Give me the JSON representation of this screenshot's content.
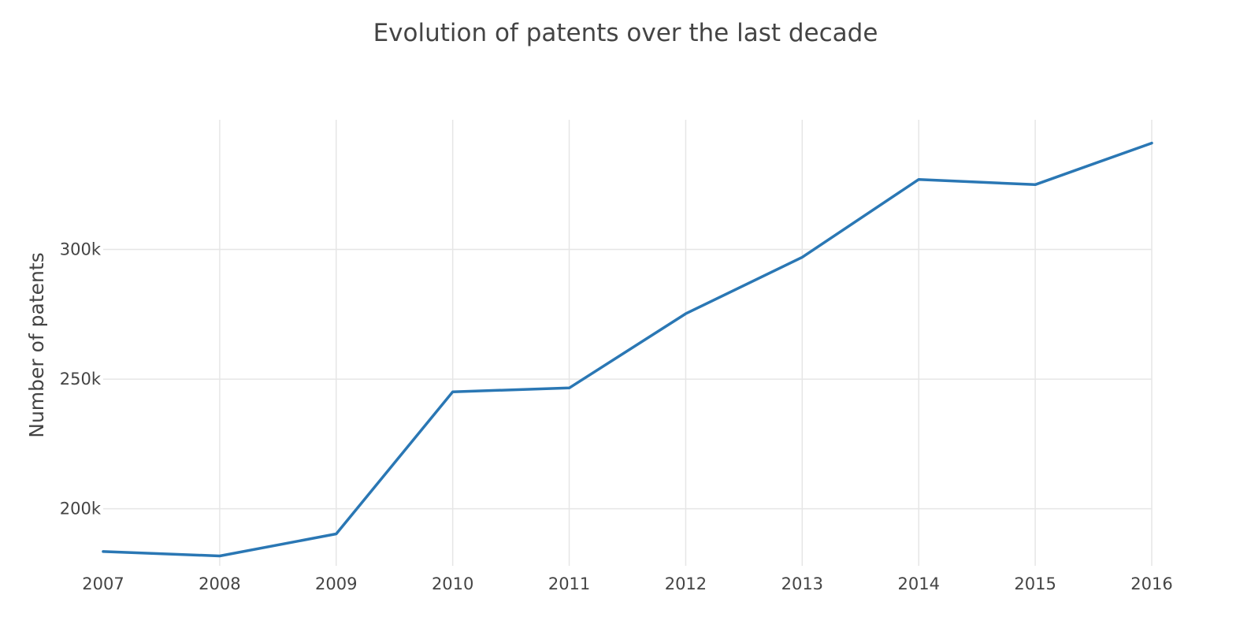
{
  "chart_data": {
    "type": "line",
    "title": "Evolution of patents over the last decade",
    "xlabel": "",
    "ylabel": "Number of patents",
    "x": [
      2007,
      2008,
      2009,
      2010,
      2011,
      2012,
      2013,
      2014,
      2015,
      2016
    ],
    "x_tick_labels": [
      "2007",
      "2008",
      "2009",
      "2010",
      "2011",
      "2012",
      "2013",
      "2014",
      "2015",
      "2016"
    ],
    "y_ticks": [
      200000,
      250000,
      300000
    ],
    "y_tick_labels": [
      "200k",
      "250k",
      "300k"
    ],
    "ylim": [
      178000,
      350000
    ],
    "grid": true,
    "series": [
      {
        "values": [
          183500,
          181800,
          190300,
          245100,
          246600,
          275200,
          297000,
          327000,
          325000,
          341000
        ],
        "color": "#2a77b4"
      }
    ]
  }
}
